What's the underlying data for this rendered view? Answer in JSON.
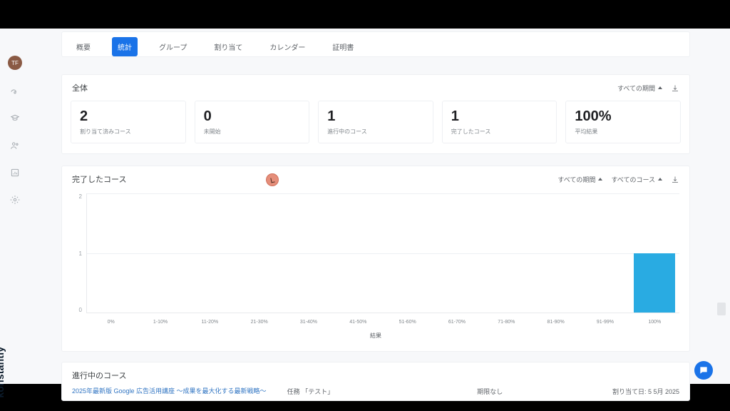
{
  "brand": "konstantly",
  "avatar": "TF",
  "tabs": {
    "overview": "概要",
    "stats": "統計",
    "groups": "グループ",
    "assign": "割り当て",
    "calendar": "カレンダー",
    "cert": "証明書"
  },
  "overall": {
    "title": "全体",
    "filter_period": "すべての期間",
    "stats": [
      {
        "value": "2",
        "label": "割り当て済みコース"
      },
      {
        "value": "0",
        "label": "未開始"
      },
      {
        "value": "1",
        "label": "進行中のコース"
      },
      {
        "value": "1",
        "label": "完了したコース"
      },
      {
        "value": "100%",
        "label": "平均結果"
      }
    ]
  },
  "chart": {
    "title": "完了したコース",
    "filter_period": "すべての期間",
    "filter_course": "すべてのコース",
    "y_ticks": [
      "2",
      "1",
      "0"
    ],
    "x_labels": [
      "0%",
      "1-10%",
      "11-20%",
      "21-30%",
      "31-40%",
      "41-50%",
      "51-60%",
      "61-70%",
      "71-80%",
      "81-90%",
      "91-99%",
      "100%"
    ],
    "x_title": "結果",
    "values": [
      0,
      0,
      0,
      0,
      0,
      0,
      0,
      0,
      0,
      0,
      0,
      1
    ],
    "ymax": 2,
    "bar_color": "#29abe2",
    "grid_color": "#edf0f3",
    "bg_color": "#ffffff"
  },
  "inprogress": {
    "title": "進行中のコース",
    "course": "2025年最新版 Google 広告活用講座 ～成果を最大化する最新戦略～",
    "task_prefix": "任務",
    "task": "「テスト」",
    "due": "期限なし",
    "assigned": "割り当て日: 5 5月 2025"
  }
}
